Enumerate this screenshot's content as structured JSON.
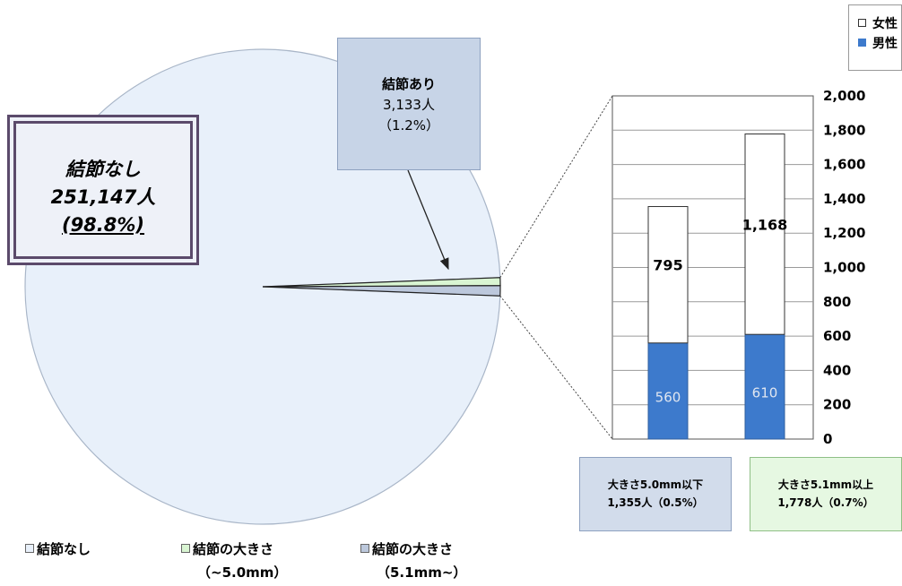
{
  "chart_data": [
    {
      "type": "pie",
      "slices": [
        {
          "name": "結節なし",
          "value": 251147,
          "percent": 98.8,
          "color": "#e8f0fa"
        },
        {
          "name": "結節の大きさ（~5.0mm）",
          "value": 1355,
          "percent": 0.5,
          "color": "#d9f5d2"
        },
        {
          "name": "結節の大きさ（5.1mm~）",
          "value": 1778,
          "percent": 0.7,
          "color": "#bcc8dc"
        }
      ]
    },
    {
      "type": "bar",
      "stacked": true,
      "categories": [
        "大きさ5.0mm以下",
        "大きさ5.1mm以上"
      ],
      "series": [
        {
          "name": "男性",
          "values": [
            560,
            610
          ],
          "color": "#3d7acc"
        },
        {
          "name": "女性",
          "values": [
            795,
            1168
          ],
          "color": "#ffffff"
        }
      ],
      "ylim": [
        0,
        2000
      ],
      "yticks": [
        "0",
        "200",
        "400",
        "600",
        "800",
        "1,000",
        "1,200",
        "1,400",
        "1,600",
        "1,800",
        "2,000"
      ],
      "data_labels": {
        "male": [
          "560",
          "610"
        ],
        "female": [
          "795",
          "1,168"
        ]
      },
      "grid": true,
      "legend": "top-right"
    }
  ],
  "labels": {
    "none": {
      "title": "結節なし",
      "count": "251,147人",
      "pct": "(98.8%)"
    },
    "yes": {
      "title": "結節あり",
      "count": "3,133人",
      "pct": "（1.2%）"
    },
    "small": {
      "line1": "大きさ5.0mm以下",
      "line2": "1,355人（0.5%）"
    },
    "large": {
      "line1": "大きさ5.1mm以上",
      "line2": "1,778人（0.7%）"
    }
  },
  "legend_right": [
    {
      "label": "女性",
      "color": "#ffffff"
    },
    {
      "label": "男性",
      "color": "#3d7acc"
    }
  ],
  "legend_bottom": [
    {
      "label": "結節なし",
      "sub": "",
      "color": "#e8f0fa"
    },
    {
      "label": "結節の大きさ",
      "sub": "（~5.0mm）",
      "color": "#d9f5d2"
    },
    {
      "label": "結節の大きさ",
      "sub": "（5.1mm~）",
      "color": "#bcc8dc"
    }
  ]
}
